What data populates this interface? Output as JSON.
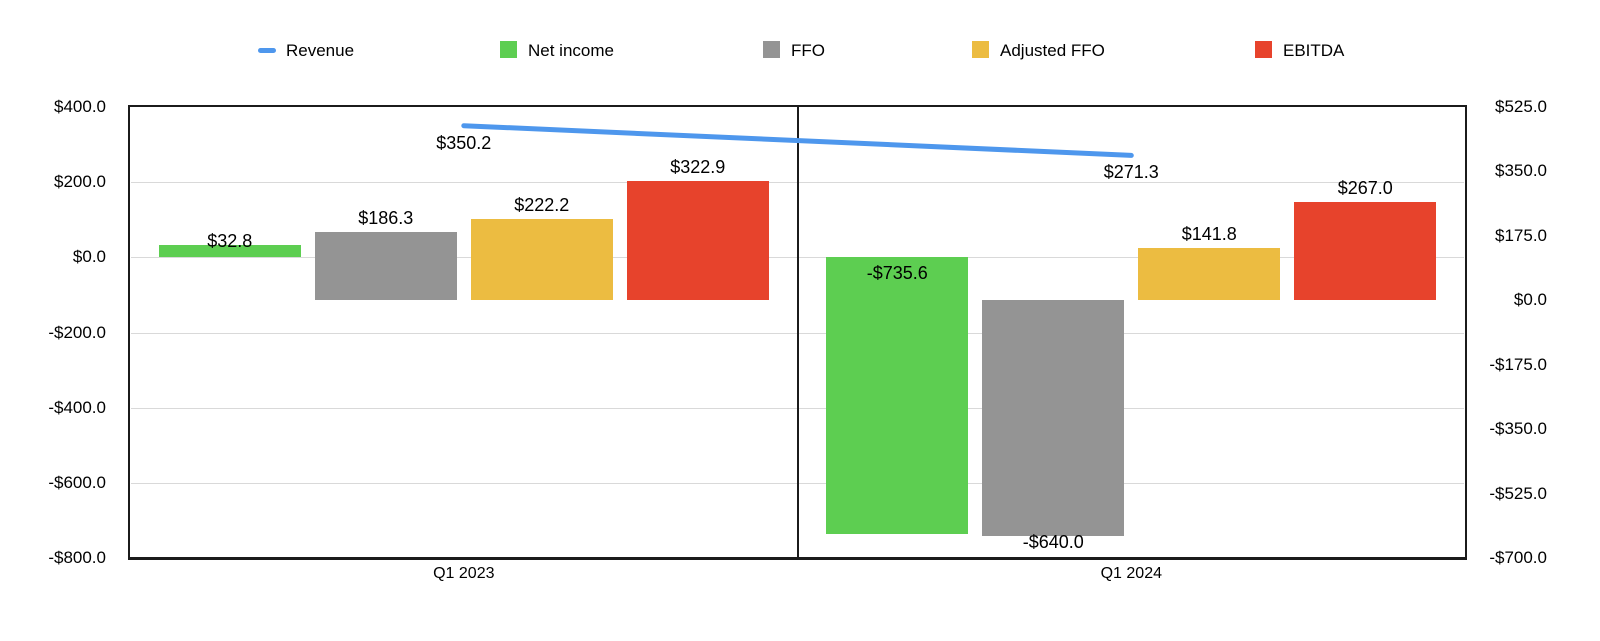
{
  "chart_data": {
    "type": "combo_bar_line",
    "title": "",
    "categories": [
      "Q1 2023",
      "Q1 2024"
    ],
    "series": [
      {
        "name": "Revenue",
        "type": "line",
        "axis": "left",
        "color": "#4E97ED",
        "values": [
          350.2,
          271.3
        ],
        "labels": [
          "$350.2",
          "$271.3"
        ]
      },
      {
        "name": "Net income",
        "type": "bar",
        "axis": "left",
        "color": "#5DCE51",
        "values": [
          32.8,
          -735.6
        ],
        "labels": [
          "$32.8",
          "-$735.6"
        ],
        "label_pos": [
          "above",
          "inside_top"
        ],
        "label_dy": [
          10,
          0
        ]
      },
      {
        "name": "FFO",
        "type": "bar",
        "axis": "right",
        "color": "#949494",
        "values": [
          186.3,
          -640.0
        ],
        "labels": [
          "$186.3",
          "-$640.0"
        ],
        "label_pos": [
          "above",
          "below"
        ],
        "label_dy": [
          0,
          0
        ]
      },
      {
        "name": "Adjusted FFO",
        "type": "bar",
        "axis": "right",
        "color": "#ECBC41",
        "values": [
          222.2,
          141.8
        ],
        "labels": [
          "$222.2",
          "$141.8"
        ],
        "label_pos": [
          "above",
          "above"
        ],
        "label_dy": [
          0,
          0
        ]
      },
      {
        "name": "EBITDA",
        "type": "bar",
        "axis": "right",
        "color": "#E7432C",
        "values": [
          322.9,
          267.0
        ],
        "labels": [
          "$322.9",
          "$267.0"
        ],
        "label_pos": [
          "above",
          "above"
        ],
        "label_dy": [
          0,
          0
        ]
      }
    ],
    "left_axis": {
      "min": -800,
      "max": 400,
      "tick_step": 200,
      "ticks": [
        {
          "value": 400,
          "label": "$400.0"
        },
        {
          "value": 200,
          "label": "$200.0"
        },
        {
          "value": 0,
          "label": "$0.0"
        },
        {
          "value": -200,
          "label": "-$200.0"
        },
        {
          "value": -400,
          "label": "-$400.0"
        },
        {
          "value": -600,
          "label": "-$600.0"
        },
        {
          "value": -800,
          "label": "-$800.0"
        }
      ]
    },
    "right_axis": {
      "min": -700,
      "max": 525,
      "tick_step": 175,
      "ticks": [
        {
          "value": 525,
          "label": "$525.0"
        },
        {
          "value": 350,
          "label": "$350.0"
        },
        {
          "value": 175,
          "label": "$175.0"
        },
        {
          "value": 0,
          "label": "$0.0"
        },
        {
          "value": -175,
          "label": "-$175.0"
        },
        {
          "value": -350,
          "label": "-$350.0"
        },
        {
          "value": -525,
          "label": "-$525.0"
        },
        {
          "value": -700,
          "label": "-$700.0"
        }
      ]
    },
    "legend_position": "top",
    "grid": "horizontal lines at left-axis 200 intervals",
    "colors": {
      "gridline": "#D9D9D9",
      "axis_line": "#1B1B1B",
      "label_text": "#000000",
      "background": "#FFFFFF"
    }
  }
}
